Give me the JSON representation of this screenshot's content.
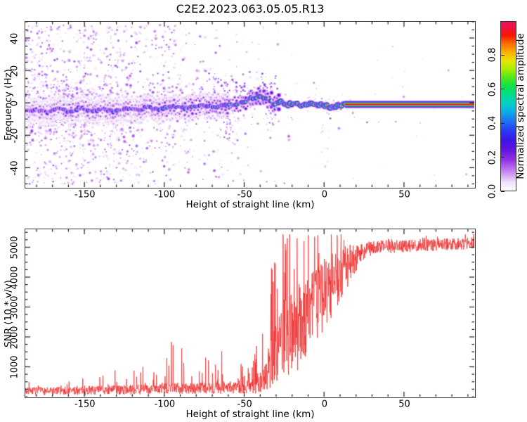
{
  "figure": {
    "title": "C2E2.2023.063.05.05.R13",
    "background": "#ffffff",
    "frame_color": "#3a3a3a",
    "tick_color": "#1a1a1a"
  },
  "chart_data": [
    {
      "id": "spectrogram",
      "type": "heatmap",
      "title": "C2E2.2023.063.05.05.R13",
      "xlabel": "Height of straight line (km)",
      "ylabel": "Frequency (Hz)",
      "xlim": [
        -187,
        94
      ],
      "ylim": [
        -52,
        50
      ],
      "xticks": [
        -150,
        -100,
        -50,
        0,
        50
      ],
      "yticks": [
        -40,
        -20,
        0,
        20,
        40
      ],
      "minor_x": 10,
      "minor_y": 5,
      "colorbar": {
        "label": "Normalized spectral amplitude",
        "ticks": [
          0.0,
          0.2,
          0.4,
          0.6,
          0.8
        ],
        "range": [
          0,
          1
        ],
        "stops": [
          [
            0.0,
            "#ffffff"
          ],
          [
            0.05,
            "#efe0fa"
          ],
          [
            0.12,
            "#c27bee"
          ],
          [
            0.18,
            "#9333e8"
          ],
          [
            0.24,
            "#6414e0"
          ],
          [
            0.3,
            "#3c14e8"
          ],
          [
            0.36,
            "#2440f4"
          ],
          [
            0.42,
            "#1b7cf2"
          ],
          [
            0.47,
            "#0bb0e6"
          ],
          [
            0.52,
            "#00d2c0"
          ],
          [
            0.57,
            "#00dc8a"
          ],
          [
            0.62,
            "#10e248"
          ],
          [
            0.67,
            "#52e81c"
          ],
          [
            0.72,
            "#a8ee00"
          ],
          [
            0.77,
            "#e8e400"
          ],
          [
            0.82,
            "#fcb000"
          ],
          [
            0.87,
            "#fc6c00"
          ],
          [
            0.92,
            "#f81400"
          ],
          [
            0.96,
            "#f3103a"
          ],
          [
            1.0,
            "#ec1455"
          ]
        ]
      },
      "ridge": {
        "straight_from": 13,
        "straight_freq": -1,
        "straight_value": 1.0,
        "points": [
          [
            -187,
            -5
          ],
          [
            -180,
            -4
          ],
          [
            -173,
            -6
          ],
          [
            -166,
            -3.5
          ],
          [
            -159,
            -5.5
          ],
          [
            -152,
            -3
          ],
          [
            -145,
            -5
          ],
          [
            -138,
            -3.5
          ],
          [
            -131,
            -5.5
          ],
          [
            -124,
            -3
          ],
          [
            -117,
            -4.5
          ],
          [
            -110,
            -2.5
          ],
          [
            -103,
            -4
          ],
          [
            -96,
            -2
          ],
          [
            -89,
            -3.5
          ],
          [
            -82,
            -2.5
          ],
          [
            -75,
            -1.5
          ],
          [
            -68,
            -2.5
          ],
          [
            -61,
            -1.5
          ],
          [
            -54,
            -0.5
          ],
          [
            -49,
            1
          ],
          [
            -45,
            3
          ],
          [
            -41,
            3.5
          ],
          [
            -37,
            2.5
          ],
          [
            -33,
            1
          ],
          [
            -31,
            -1.5
          ],
          [
            -29,
            0.5
          ],
          [
            -26,
            0
          ],
          [
            -22,
            -1
          ],
          [
            -18,
            -0.5
          ],
          [
            -14,
            -1.5
          ],
          [
            -10,
            -0.5
          ],
          [
            -6,
            -1
          ],
          [
            -2,
            -0.8
          ],
          [
            1,
            -1.8
          ],
          [
            4,
            -2.8
          ],
          [
            7,
            -2.2
          ],
          [
            10,
            -1.2
          ],
          [
            13,
            -1
          ],
          [
            94,
            -1
          ]
        ],
        "values": [
          [
            -187,
            0.35
          ],
          [
            -170,
            0.38
          ],
          [
            -160,
            0.5
          ],
          [
            -150,
            0.42
          ],
          [
            -140,
            0.48
          ],
          [
            -130,
            0.45
          ],
          [
            -120,
            0.42
          ],
          [
            -110,
            0.5
          ],
          [
            -100,
            0.55
          ],
          [
            -90,
            0.5
          ],
          [
            -80,
            0.55
          ],
          [
            -70,
            0.58
          ],
          [
            -60,
            0.62
          ],
          [
            -52,
            0.65
          ],
          [
            -46,
            0.72
          ],
          [
            -40,
            0.8
          ],
          [
            -34,
            0.78
          ],
          [
            -30,
            0.72
          ],
          [
            -26,
            0.85
          ],
          [
            -20,
            0.88
          ],
          [
            -14,
            0.9
          ],
          [
            -8,
            0.93
          ],
          [
            -2,
            0.9
          ],
          [
            3,
            0.85
          ],
          [
            8,
            0.92
          ],
          [
            13,
            1.0
          ],
          [
            94,
            1.0
          ]
        ]
      },
      "noise": {
        "seed": 42,
        "count": 2400,
        "density": [
          [
            -187,
            1.0
          ],
          [
            -150,
            0.95
          ],
          [
            -130,
            0.8
          ],
          [
            -110,
            0.6
          ],
          [
            -95,
            0.5
          ],
          [
            -80,
            0.38
          ],
          [
            -65,
            0.3
          ],
          [
            -52,
            0.22
          ],
          [
            -40,
            0.1
          ],
          [
            -30,
            0.05
          ],
          [
            -15,
            0.025
          ],
          [
            0,
            0.015
          ],
          [
            20,
            0.008
          ],
          [
            94,
            0.004
          ]
        ],
        "clusters": [
          {
            "km": [
              -70,
              -48
            ],
            "f": [
              6,
              16
            ],
            "n": 35,
            "v": [
              0.12,
              0.4
            ],
            "r": [
              1.2,
              2.8
            ]
          },
          {
            "km": [
              -63,
              -56
            ],
            "f": [
              -26,
              -3
            ],
            "n": 26,
            "v": [
              0.08,
              0.3
            ],
            "r": [
              1.0,
              2.4
            ]
          },
          {
            "km": [
              -40,
              -29
            ],
            "f": [
              7,
              18
            ],
            "n": 26,
            "v": [
              0.12,
              0.45
            ],
            "r": [
              1.2,
              2.6
            ]
          },
          {
            "km": [
              -38,
              -31
            ],
            "f": [
              -20,
              -4
            ],
            "n": 14,
            "v": [
              0.08,
              0.25
            ],
            "r": [
              1.0,
              2.2
            ]
          },
          {
            "km": [
              -2,
              4
            ],
            "f": [
              -40,
              6
            ],
            "n": 14,
            "v": [
              0.06,
              0.18
            ],
            "r": [
              0.9,
              2.0
            ]
          },
          {
            "km": [
              -12,
              20
            ],
            "f": [
              -8,
              6
            ],
            "n": 30,
            "v": [
              0.08,
              0.25
            ],
            "r": [
              1.0,
              2.2
            ]
          },
          {
            "km": [
              30,
              90
            ],
            "f": [
              -45,
              45
            ],
            "n": 10,
            "v": [
              0.05,
              0.14
            ],
            "r": [
              0.8,
              1.6
            ]
          }
        ]
      }
    },
    {
      "id": "snr",
      "type": "line",
      "color": "#ee2c2c",
      "xlabel": "Height of straight line (km)",
      "ylabel": "SNR (10 * v/v)",
      "xlim": [
        -187,
        94
      ],
      "ylim": [
        0,
        5600
      ],
      "xticks": [
        -150,
        -100,
        -50,
        0,
        50
      ],
      "yticks": [
        1000,
        2000,
        3000,
        4000,
        5000
      ],
      "minor_x": 10,
      "minor_y": 250,
      "seed": 7,
      "envelope": [
        [
          -187,
          180,
          130,
          260,
          0.1
        ],
        [
          -160,
          200,
          140,
          380,
          0.1
        ],
        [
          -140,
          215,
          150,
          480,
          0.12
        ],
        [
          -120,
          235,
          160,
          650,
          0.12
        ],
        [
          -103,
          255,
          170,
          950,
          0.13
        ],
        [
          -95,
          285,
          190,
          1500,
          0.14
        ],
        [
          -88,
          285,
          190,
          1300,
          0.12
        ],
        [
          -78,
          285,
          185,
          950,
          0.12
        ],
        [
          -66,
          310,
          210,
          1150,
          0.14
        ],
        [
          -56,
          310,
          200,
          800,
          0.12
        ],
        [
          -48,
          330,
          250,
          750,
          0.15
        ],
        [
          -43,
          420,
          310,
          1100,
          0.18
        ],
        [
          -38,
          550,
          400,
          1700,
          0.15
        ],
        [
          -34,
          900,
          650,
          2600,
          0.2
        ],
        [
          -30,
          1500,
          1100,
          2900,
          0.28
        ],
        [
          -26,
          1900,
          1300,
          3200,
          0.28
        ],
        [
          -22,
          2100,
          1400,
          2800,
          0.3
        ],
        [
          -18,
          2250,
          1450,
          2600,
          0.3
        ],
        [
          -14,
          2450,
          1450,
          2400,
          0.3
        ],
        [
          -10,
          2650,
          1400,
          2300,
          0.28
        ],
        [
          -6,
          2950,
          1400,
          2100,
          0.25
        ],
        [
          -2,
          3250,
          1300,
          1850,
          0.22
        ],
        [
          2,
          3550,
          1200,
          1550,
          0.2
        ],
        [
          6,
          3850,
          1050,
          1250,
          0.18
        ],
        [
          10,
          4100,
          900,
          950,
          0.15
        ],
        [
          14,
          4300,
          750,
          800,
          0.13
        ],
        [
          18,
          4550,
          560,
          600,
          0.1
        ],
        [
          22,
          4780,
          400,
          420,
          0.08
        ],
        [
          26,
          4930,
          270,
          290,
          0.06
        ],
        [
          34,
          5010,
          230,
          250,
          0.05
        ],
        [
          55,
          5050,
          210,
          230,
          0.05
        ],
        [
          75,
          5090,
          200,
          220,
          0.05
        ],
        [
          94,
          5140,
          200,
          220,
          0.05
        ]
      ],
      "peaks": [
        [
          -119,
          870
        ],
        [
          -95.5,
          1830
        ],
        [
          -89,
          1620
        ],
        [
          -64,
          1520
        ],
        [
          -38.5,
          2100
        ],
        [
          -33,
          4300
        ],
        [
          -30.5,
          4450
        ],
        [
          -25.5,
          5250
        ],
        [
          -23,
          5300
        ],
        [
          -12.5,
          5200
        ],
        [
          -6,
          5350
        ],
        [
          -4,
          5280
        ],
        [
          8.3,
          5300
        ],
        [
          17,
          4900
        ],
        [
          20.5,
          5050
        ]
      ]
    }
  ]
}
